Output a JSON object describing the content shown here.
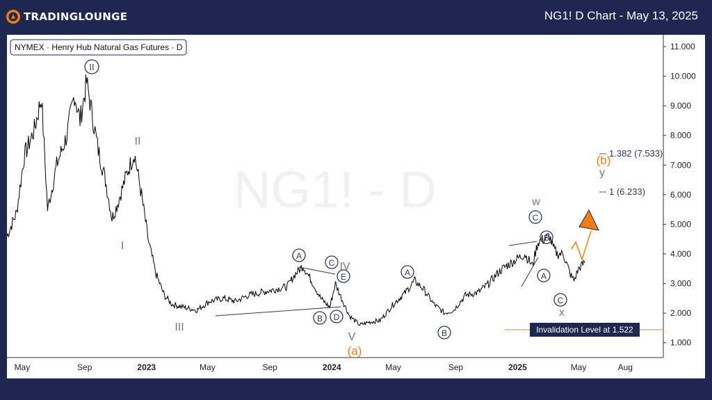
{
  "header": {
    "logo_text": "TRADINGLOUNGE",
    "chart_title": "NG1! D Chart - May 13, 2025"
  },
  "chart_data": {
    "type": "line",
    "symbol_label": "NYMEX · Henry Hub Natural Gas Futures · D",
    "watermark": "NG1! - D",
    "x_ticks": [
      "May",
      "Sep",
      "2023",
      "May",
      "Sep",
      "2024",
      "May",
      "Sep",
      "2025",
      "May",
      "Aug"
    ],
    "y_ticks": [
      "11.000",
      "10.000",
      "9.000",
      "8.000",
      "7.000",
      "6.000",
      "5.000",
      "4.000",
      "3.000",
      "2.000",
      "1.000"
    ],
    "ylim": [
      0.5,
      11.4
    ],
    "xlim": [
      "2022-04-01",
      "2025-10-15"
    ],
    "series": [
      {
        "values_x": [
          "2022-04-01",
          "2022-04-20",
          "2022-05-05",
          "2022-05-25",
          "2022-06-08",
          "2022-06-20",
          "2022-07-08",
          "2022-07-28",
          "2022-08-12",
          "2022-08-23",
          "2022-09-05",
          "2022-09-28",
          "2022-10-12",
          "2022-10-25",
          "2022-11-05",
          "2022-11-25",
          "2022-12-08",
          "2022-12-22",
          "2023-01-05",
          "2023-01-20",
          "2023-02-05",
          "2023-02-20",
          "2023-03-15",
          "2023-04-10",
          "2023-05-05",
          "2023-06-01",
          "2023-06-25",
          "2023-07-20",
          "2023-08-15",
          "2023-09-10",
          "2023-10-05",
          "2023-10-20",
          "2023-11-05",
          "2023-11-25",
          "2023-12-10",
          "2023-12-28",
          "2024-01-08",
          "2024-01-20",
          "2024-02-05",
          "2024-02-25",
          "2024-03-15",
          "2024-04-05",
          "2024-05-01",
          "2024-05-25",
          "2024-06-12",
          "2024-06-30",
          "2024-07-20",
          "2024-08-10",
          "2024-08-28",
          "2024-09-20",
          "2024-10-15",
          "2024-11-05",
          "2024-11-25",
          "2024-12-10",
          "2024-12-28",
          "2025-01-15",
          "2025-01-30",
          "2025-02-10",
          "2025-03-05",
          "2025-03-12",
          "2025-03-20",
          "2025-04-01",
          "2025-04-15",
          "2025-04-22",
          "2025-05-01",
          "2025-05-13"
        ],
        "values_y": [
          4.6,
          5.4,
          7.3,
          8.2,
          9.3,
          5.5,
          7.0,
          8.0,
          9.4,
          8.5,
          9.8,
          7.5,
          6.5,
          5.2,
          5.7,
          6.8,
          7.4,
          6.0,
          4.4,
          3.3,
          2.6,
          2.3,
          2.2,
          2.1,
          2.4,
          2.5,
          2.4,
          2.6,
          2.7,
          2.8,
          2.9,
          3.3,
          3.6,
          3.0,
          2.5,
          2.2,
          3.0,
          2.5,
          1.9,
          1.6,
          1.7,
          1.75,
          2.3,
          2.7,
          3.1,
          2.8,
          2.3,
          2.0,
          2.1,
          2.6,
          2.7,
          3.0,
          3.4,
          3.6,
          3.8,
          4.0,
          3.6,
          4.4,
          4.6,
          4.2,
          4.0,
          4.0,
          3.3,
          3.1,
          3.5,
          3.7
        ]
      }
    ],
    "wave_labels": {
      "circled": [
        "II",
        "A",
        "C",
        "E",
        "B",
        "D",
        "A",
        "B",
        "C",
        "B",
        "A",
        "C"
      ],
      "plain": [
        "II",
        "I",
        "III",
        "IV",
        "V",
        "w",
        "x",
        "y"
      ],
      "orange": [
        "(a)",
        "(b)"
      ]
    },
    "fib_levels": [
      {
        "label": "1.382 (7.533)",
        "value": 7.533
      },
      {
        "label": "1 (6.233)",
        "value": 6.233
      }
    ],
    "invalidation": {
      "label": "Invalidation Level at 1.522",
      "value": 1.522
    },
    "colors": {
      "price": "#000000",
      "wave_label": "#2d3a55",
      "orange": "#f07d14",
      "invalidation_box": "#1d2750",
      "panel": "#ffffff",
      "frame": "#1d2750"
    }
  }
}
